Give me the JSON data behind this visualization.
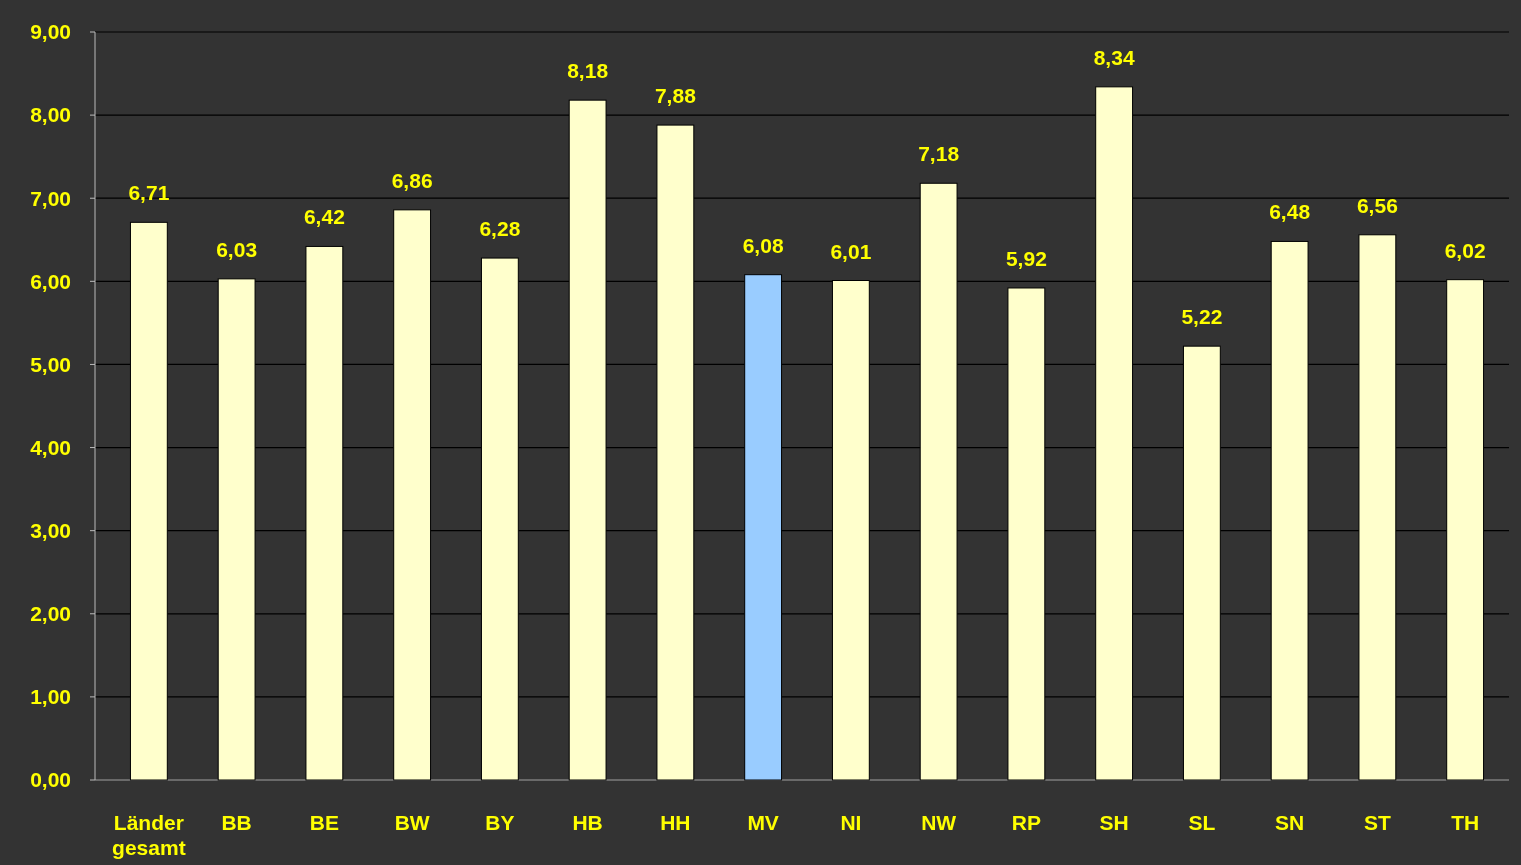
{
  "chart_data": {
    "type": "bar",
    "categories": [
      "Länder gesamt",
      "BB",
      "BE",
      "BW",
      "BY",
      "HB",
      "HH",
      "MV",
      "NI",
      "NW",
      "RP",
      "SH",
      "SL",
      "SN",
      "ST",
      "TH"
    ],
    "values": [
      6.71,
      6.03,
      6.42,
      6.86,
      6.28,
      8.18,
      7.88,
      6.08,
      6.01,
      7.18,
      5.92,
      8.34,
      5.22,
      6.48,
      6.56,
      6.02
    ],
    "colors": [
      "#ffffcc",
      "#ffffcc",
      "#ffffcc",
      "#ffffcc",
      "#ffffcc",
      "#ffffcc",
      "#ffffcc",
      "#99ccff",
      "#ffffcc",
      "#ffffcc",
      "#ffffcc",
      "#ffffcc",
      "#ffffcc",
      "#ffffcc",
      "#ffffcc",
      "#ffffcc"
    ],
    "value_labels": [
      "6,71",
      "6,03",
      "6,42",
      "6,86",
      "6,28",
      "8,18",
      "7,88",
      "6,08",
      "6,01",
      "7,18",
      "5,92",
      "8,34",
      "5,22",
      "6,48",
      "6,56",
      "6,02"
    ],
    "ylim": [
      0,
      9
    ],
    "yticks": [
      {
        "value": 0,
        "label": "0,00"
      },
      {
        "value": 1,
        "label": "1,00"
      },
      {
        "value": 2,
        "label": "2,00"
      },
      {
        "value": 3,
        "label": "3,00"
      },
      {
        "value": 4,
        "label": "4,00"
      },
      {
        "value": 5,
        "label": "5,00"
      },
      {
        "value": 6,
        "label": "6,00"
      },
      {
        "value": 7,
        "label": "7,00"
      },
      {
        "value": 8,
        "label": "8,00"
      },
      {
        "value": 9,
        "label": "9,00"
      }
    ],
    "grid": "y"
  }
}
